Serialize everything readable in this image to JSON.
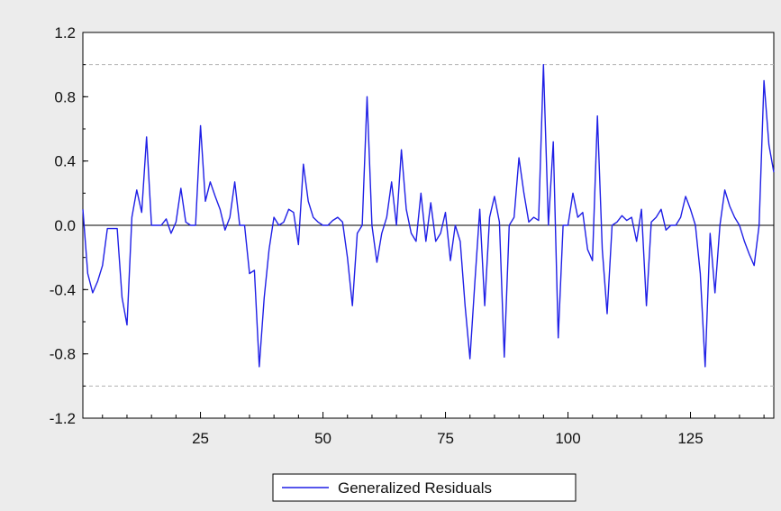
{
  "chart_data": {
    "type": "line",
    "title": "",
    "xlabel": "",
    "ylabel": "",
    "xlim": [
      1,
      142
    ],
    "ylim": [
      -1.2,
      1.2
    ],
    "x_ticks": [
      25,
      50,
      75,
      100,
      125
    ],
    "y_ticks": [
      1.2,
      0.8,
      0.4,
      0.0,
      -0.4,
      -0.8,
      -1.2
    ],
    "y_tick_labels": [
      "1.2",
      "0.8",
      "0.4",
      "0.0",
      "-0.4",
      "-0.8",
      "-1.2"
    ],
    "reference_lines": [
      1.0,
      -1.0
    ],
    "zero_line": 0.0,
    "grid": false,
    "legend_position": "bottom-center",
    "colors": {
      "series": "#1f1fe6",
      "reference": "#b0b0b0",
      "background": "#ececec",
      "plot": "#ffffff"
    },
    "series": [
      {
        "name": "Generalized Residuals",
        "x": [
          1,
          2,
          3,
          4,
          5,
          6,
          7,
          8,
          9,
          10,
          11,
          12,
          13,
          14,
          15,
          16,
          17,
          18,
          19,
          20,
          21,
          22,
          23,
          24,
          25,
          26,
          27,
          28,
          29,
          30,
          31,
          32,
          33,
          34,
          35,
          36,
          37,
          38,
          39,
          40,
          41,
          42,
          43,
          44,
          45,
          46,
          47,
          48,
          49,
          50,
          51,
          52,
          53,
          54,
          55,
          56,
          57,
          58,
          59,
          60,
          61,
          62,
          63,
          64,
          65,
          66,
          67,
          68,
          69,
          70,
          71,
          72,
          73,
          74,
          75,
          76,
          77,
          78,
          79,
          80,
          81,
          82,
          83,
          84,
          85,
          86,
          87,
          88,
          89,
          90,
          91,
          92,
          93,
          94,
          95,
          96,
          97,
          98,
          99,
          100,
          101,
          102,
          103,
          104,
          105,
          106,
          107,
          108,
          109,
          110,
          111,
          112,
          113,
          114,
          115,
          116,
          117,
          118,
          119,
          120,
          121,
          122,
          123,
          124,
          125,
          126,
          127,
          128,
          129,
          130,
          131,
          132,
          133,
          134,
          135,
          136,
          137,
          138,
          139,
          140,
          141,
          142
        ],
        "values": [
          0.1,
          -0.3,
          -0.42,
          -0.35,
          -0.25,
          -0.02,
          -0.02,
          -0.02,
          -0.45,
          -0.62,
          0.05,
          0.22,
          0.08,
          0.55,
          0.0,
          0.0,
          0.0,
          0.04,
          -0.05,
          0.02,
          0.23,
          0.02,
          0.0,
          0.0,
          0.62,
          0.15,
          0.27,
          0.18,
          0.1,
          -0.03,
          0.05,
          0.27,
          0.0,
          0.0,
          -0.3,
          -0.28,
          -0.88,
          -0.45,
          -0.15,
          0.05,
          0.0,
          0.02,
          0.1,
          0.08,
          -0.12,
          0.38,
          0.15,
          0.05,
          0.02,
          0.0,
          0.0,
          0.03,
          0.05,
          0.02,
          -0.2,
          -0.5,
          -0.05,
          0.0,
          0.8,
          0.0,
          -0.23,
          -0.05,
          0.05,
          0.27,
          0.0,
          0.47,
          0.1,
          -0.05,
          -0.1,
          0.2,
          -0.1,
          0.14,
          -0.1,
          -0.05,
          0.08,
          -0.22,
          0.0,
          -0.1,
          -0.5,
          -0.83,
          -0.35,
          0.1,
          -0.5,
          0.05,
          0.18,
          0.02,
          -0.82,
          0.0,
          0.05,
          0.42,
          0.2,
          0.02,
          0.05,
          0.03,
          1.0,
          0.0,
          0.52,
          -0.7,
          0.0,
          0.0,
          0.2,
          0.05,
          0.08,
          -0.15,
          -0.22,
          0.68,
          -0.15,
          -0.55,
          0.0,
          0.02,
          0.06,
          0.03,
          0.05,
          -0.1,
          0.1,
          -0.5,
          0.02,
          0.05,
          0.1,
          -0.03,
          0.0,
          0.0,
          0.05,
          0.18,
          0.1,
          0.0,
          -0.3,
          -0.88,
          -0.05,
          -0.42,
          0.0,
          0.22,
          0.12,
          0.05,
          0.0,
          -0.1,
          -0.18,
          -0.25,
          0.0,
          0.9,
          0.5,
          0.33
        ]
      }
    ]
  }
}
